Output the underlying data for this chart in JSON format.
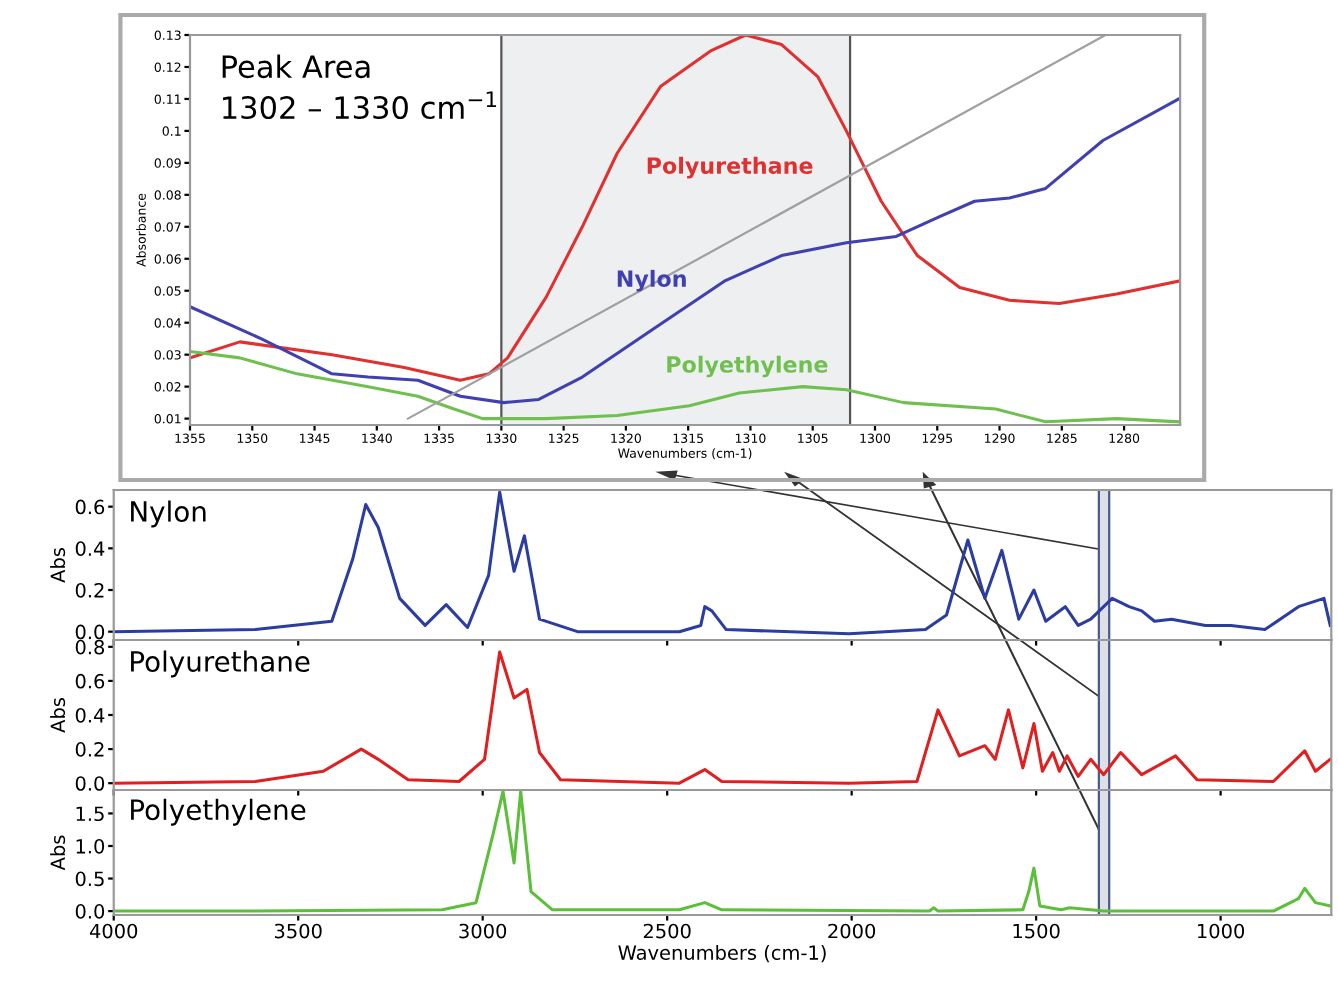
{
  "chart_data": [
    {
      "type": "line",
      "xlabel": "Wavenumbers (cm-1)",
      "ylabel": "Absorbance",
      "xlim": [
        1355,
        1275.5
      ],
      "xticks": [
        1355,
        1350,
        1345,
        1340,
        1335,
        1330,
        1325,
        1320,
        1315,
        1310,
        1305,
        1300,
        1295,
        1290,
        1285,
        1280
      ],
      "ylim": [
        0.008,
        0.13
      ],
      "yticks": [
        0.01,
        0.02,
        0.03,
        0.04,
        0.05,
        0.06,
        0.07,
        0.08,
        0.09,
        0.1,
        0.11,
        0.12,
        0.13
      ],
      "annotations": [
        "Peak Area\n1302 – 1330 cm$^{−1}$"
      ],
      "bands": [
        {
          "axis": "x",
          "from": 1330,
          "to": 1302,
          "color": "#eeeff0"
        }
      ],
      "series": [
        {
          "name": "Polyurethane",
          "color": "#e03030",
          "x": [
            1355,
            1351,
            1343.6,
            1337.8,
            1333.3,
            1331,
            1329.5,
            1326.4,
            1323.5,
            1320.7,
            1317.2,
            1313.2,
            1310.4,
            1307.5,
            1304.6,
            1302.3,
            1299.5,
            1296.6,
            1293.2,
            1289.2,
            1285.2,
            1280.6,
            1275.6
          ],
          "values": [
            0.029,
            0.034,
            0.03,
            0.026,
            0.022,
            0.024,
            0.029,
            0.048,
            0.07,
            0.093,
            0.114,
            0.125,
            0.13,
            0.127,
            0.117,
            0.1,
            0.078,
            0.061,
            0.051,
            0.047,
            0.046,
            0.049,
            0.053
          ]
        },
        {
          "name": "Nylon",
          "color": "#4040b0",
          "x": [
            1355,
            1349.3,
            1343.6,
            1340.7,
            1336.7,
            1333.3,
            1329.8,
            1327,
            1323.5,
            1317.8,
            1312.1,
            1307.5,
            1302.3,
            1298.3,
            1294.9,
            1292,
            1289.2,
            1286.3,
            1281.7,
            1275.6
          ],
          "values": [
            0.045,
            0.035,
            0.024,
            0.023,
            0.022,
            0.017,
            0.015,
            0.016,
            0.023,
            0.038,
            0.053,
            0.061,
            0.065,
            0.067,
            0.073,
            0.078,
            0.079,
            0.082,
            0.097,
            0.11
          ]
        },
        {
          "name": "Polyethylene",
          "color": "#70c050",
          "x": [
            1355,
            1351,
            1346.4,
            1340.7,
            1336.7,
            1333.8,
            1331.5,
            1326.4,
            1320.7,
            1314.9,
            1310.9,
            1305.8,
            1302.3,
            1297.7,
            1290.3,
            1286.3,
            1280.6,
            1275.6
          ],
          "values": [
            0.031,
            0.029,
            0.024,
            0.02,
            0.017,
            0.013,
            0.01,
            0.01,
            0.011,
            0.014,
            0.018,
            0.02,
            0.019,
            0.015,
            0.013,
            0.009,
            0.01,
            0.009
          ]
        },
        {
          "color": "#a0a0a0",
          "x": [
            1337.5,
            1281.5
          ],
          "values": [
            0.01,
            0.13
          ]
        }
      ]
    },
    {
      "type": "line",
      "ylabel": "Abs",
      "tick_labels": "y",
      "xlim": [
        4000,
        700
      ],
      "xticks": [
        4000,
        3500,
        3000,
        2500,
        2000,
        1500,
        1000
      ],
      "ylim": [
        -0.04,
        0.68
      ],
      "yticks": [
        {
          "value": 0,
          "label": "0.0"
        },
        {
          "value": 0.2,
          "label": "0.2"
        },
        {
          "value": 0.4,
          "label": "0.4"
        },
        {
          "value": 0.6,
          "label": "0.6"
        }
      ],
      "bands": [
        {
          "axis": "x",
          "from": 1302,
          "to": 1330,
          "color": "#dde0e6"
        }
      ],
      "series": [
        {
          "name": "Nylon",
          "color": "#2b3da0",
          "x": [
            4000,
            3616,
            3409,
            3352,
            3317,
            3283,
            3225,
            3156,
            3099,
            3041,
            2984,
            2954,
            2915,
            2887,
            2846,
            2743,
            2467,
            2409,
            2398,
            2379,
            2340,
            2007,
            1800,
            1743,
            1685,
            1639,
            1593,
            1547,
            1506,
            1474,
            1421,
            1386,
            1352,
            1317,
            1294,
            1248,
            1214,
            1179,
            1133,
            1041,
            972,
            880,
            789,
            720,
            703
          ],
          "values": [
            0,
            0.01,
            0.05,
            0.35,
            0.61,
            0.5,
            0.16,
            0.03,
            0.13,
            0.02,
            0.27,
            0.67,
            0.29,
            0.46,
            0.06,
            0,
            0,
            0.03,
            0.12,
            0.1,
            0.01,
            -0.01,
            0.01,
            0.08,
            0.44,
            0.16,
            0.39,
            0.06,
            0.2,
            0.05,
            0.12,
            0.03,
            0.06,
            0.12,
            0.16,
            0.12,
            0.1,
            0.05,
            0.06,
            0.03,
            0.03,
            0.01,
            0.12,
            0.16,
            0.03
          ]
        }
      ]
    },
    {
      "type": "line",
      "ylabel": "Abs",
      "tick_labels": "y",
      "xlim": [
        4000,
        700
      ],
      "xticks": [
        4000,
        3500,
        3000,
        2500,
        2000,
        1500,
        1000
      ],
      "ylim": [
        -0.04,
        0.84
      ],
      "yticks": [
        {
          "value": 0,
          "label": "0.0"
        },
        {
          "value": 0.2,
          "label": "0.2"
        },
        {
          "value": 0.4,
          "label": "0.4"
        },
        {
          "value": 0.6,
          "label": "0.6"
        },
        {
          "value": 0.8,
          "label": "0.8"
        }
      ],
      "bands": [
        {
          "axis": "x",
          "from": 1302,
          "to": 1330,
          "color": "#dde0e6"
        }
      ],
      "series": [
        {
          "name": "Polyurethane",
          "color": "#e02020",
          "x": [
            4000,
            3616,
            3432,
            3329,
            3283,
            3202,
            3064,
            2995,
            2954,
            2915,
            2880,
            2846,
            2789,
            2467,
            2398,
            2352,
            2007,
            1823,
            1766,
            1708,
            1639,
            1611,
            1575,
            1536,
            1506,
            1483,
            1455,
            1437,
            1416,
            1386,
            1352,
            1317,
            1271,
            1214,
            1122,
            1064,
            857,
            772,
            743,
            703
          ],
          "values": [
            0,
            0.01,
            0.07,
            0.2,
            0.14,
            0.02,
            0.01,
            0.14,
            0.77,
            0.5,
            0.55,
            0.18,
            0.02,
            0,
            0.08,
            0.01,
            0,
            0.01,
            0.43,
            0.16,
            0.22,
            0.14,
            0.43,
            0.09,
            0.35,
            0.07,
            0.18,
            0.07,
            0.16,
            0.04,
            0.14,
            0.05,
            0.18,
            0.05,
            0.16,
            0.02,
            0.01,
            0.19,
            0.07,
            0.14
          ]
        }
      ]
    },
    {
      "type": "line",
      "xlabel": "Wavenumbers (cm-1)",
      "ylabel": "Abs",
      "xlim": [
        4000,
        700
      ],
      "xticks": [
        4000,
        3500,
        3000,
        2500,
        2000,
        1500,
        1000
      ],
      "ylim": [
        -0.06,
        1.86
      ],
      "yticks": [
        {
          "value": 0,
          "label": "0.0"
        },
        {
          "value": 0.5,
          "label": "0.5"
        },
        {
          "value": 1,
          "label": "1.0"
        },
        {
          "value": 1.5,
          "label": "1.5"
        }
      ],
      "bands": [
        {
          "axis": "x",
          "from": 1302,
          "to": 1330,
          "color": "#dde0e6"
        }
      ],
      "series": [
        {
          "name": "Polyethylene",
          "color": "#5cbf3a",
          "x": [
            4000,
            3639,
            3110,
            3018,
            2972,
            2945,
            2915,
            2897,
            2869,
            2811,
            2467,
            2398,
            2352,
            1789,
            1777,
            1766,
            1536,
            1520,
            1506,
            1490,
            1432,
            1409,
            1317,
            857,
            789,
            772,
            743,
            703
          ],
          "values": [
            0,
            0,
            0.02,
            0.13,
            1.18,
            1.84,
            0.74,
            1.84,
            0.3,
            0.02,
            0.02,
            0.13,
            0.02,
            0,
            0.05,
            0,
            0.02,
            0.3,
            0.66,
            0.08,
            0.02,
            0.05,
            0,
            0,
            0.19,
            0.35,
            0.13,
            0.08
          ]
        }
      ]
    }
  ]
}
